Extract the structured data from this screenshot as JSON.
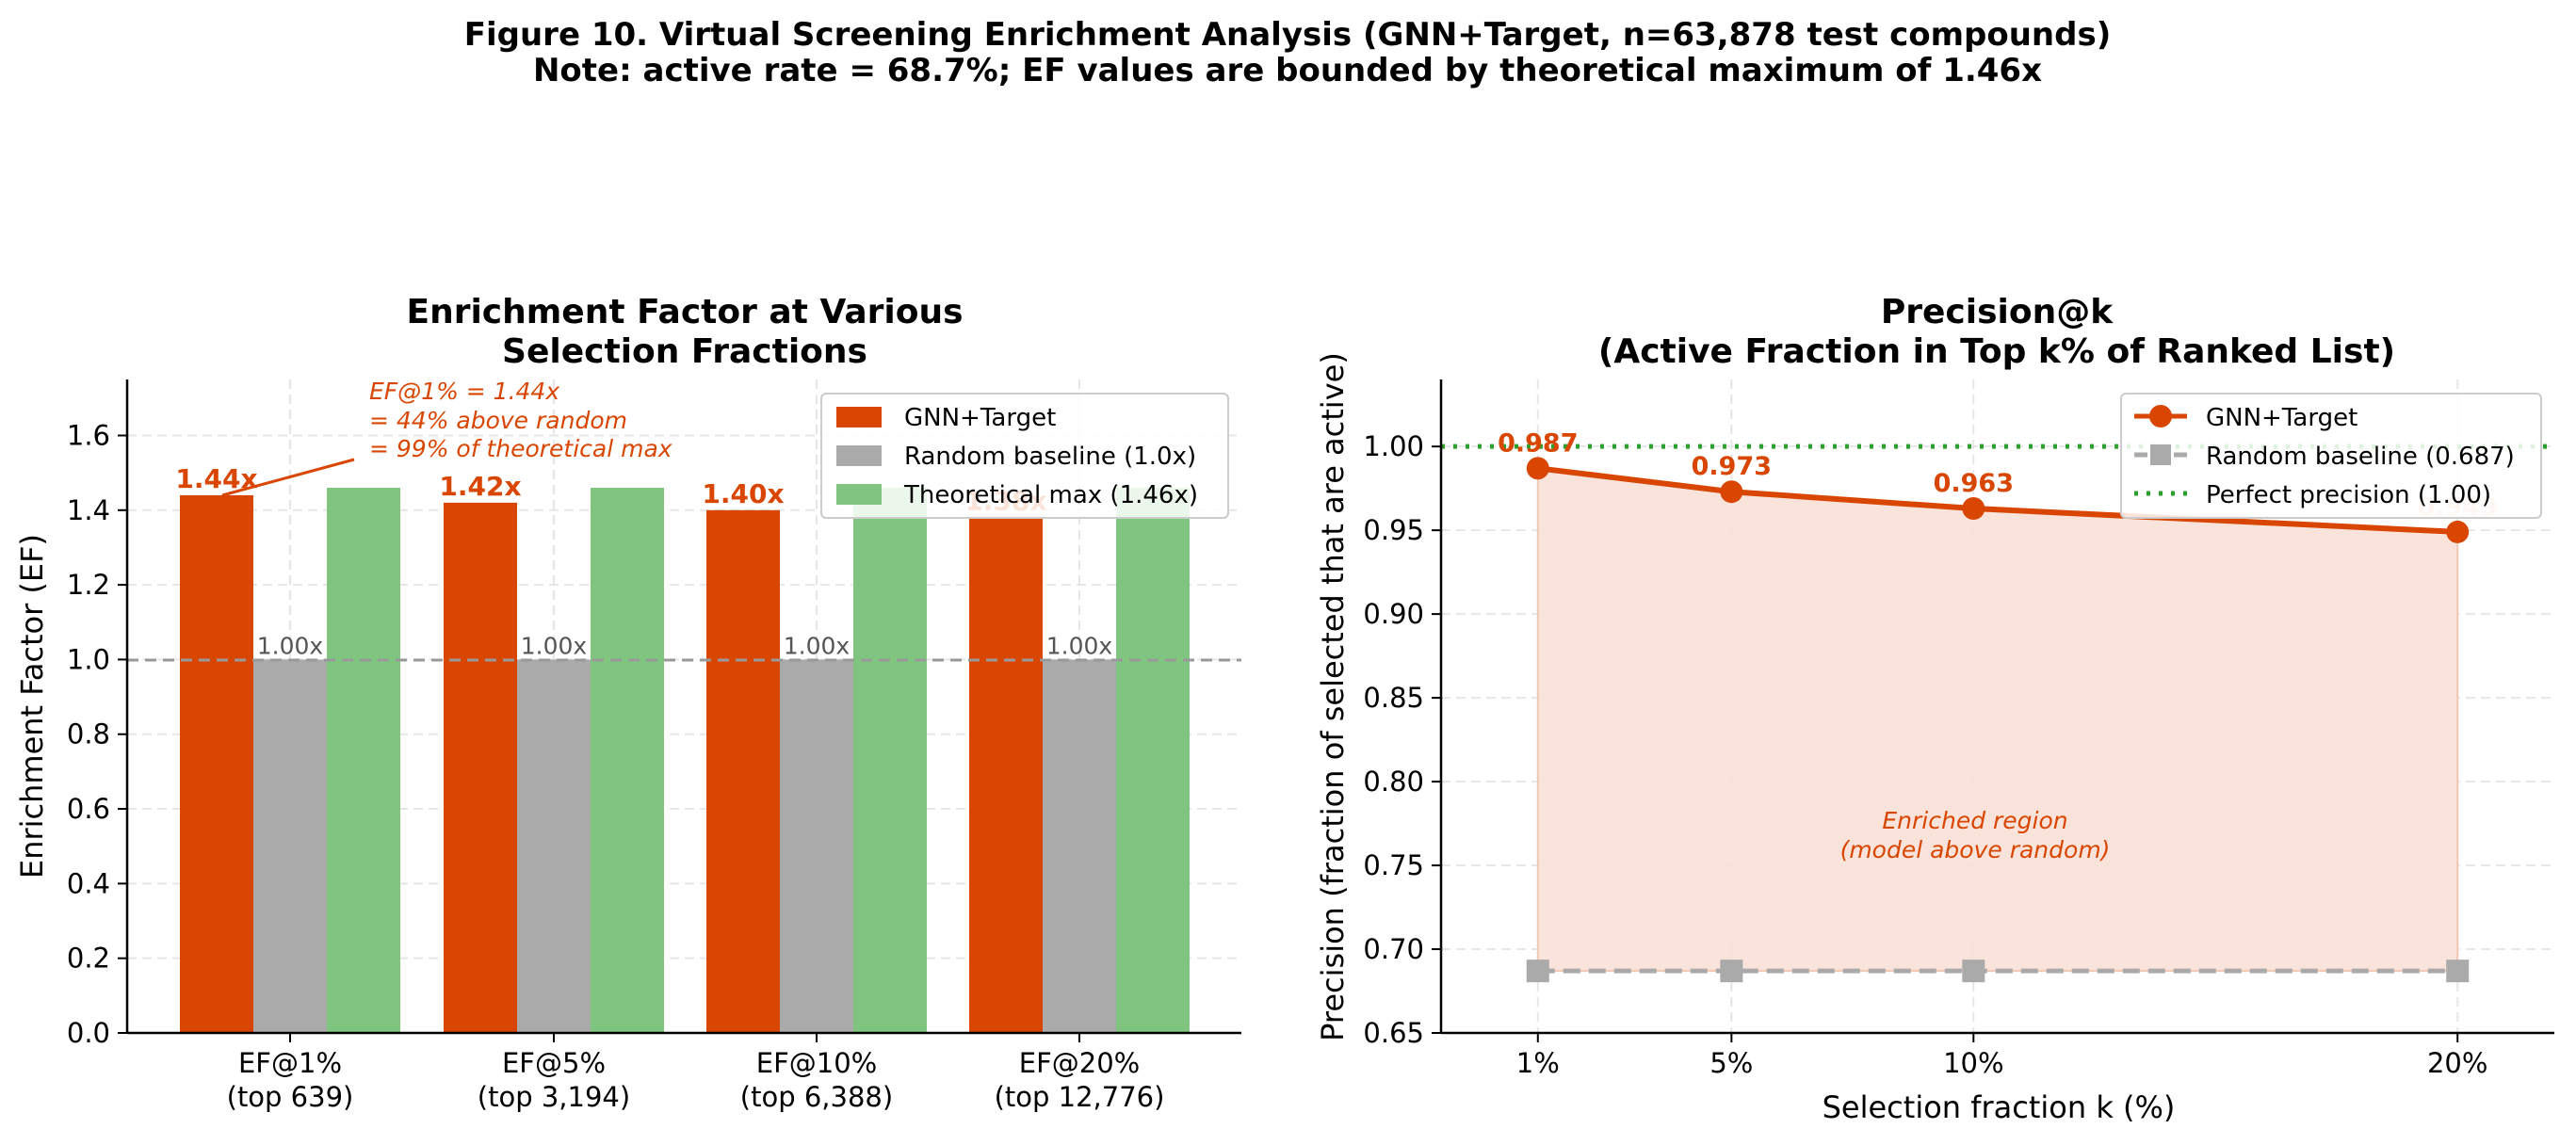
{
  "figure": {
    "title_line1": "Figure 10.  Virtual Screening Enrichment Analysis (GNN+Target, n=63,878 test compounds)",
    "title_line2": "Note: active rate = 68.7%; EF values are bounded by theoretical maximum of 1.46x"
  },
  "colors": {
    "model": "#d94602",
    "random": "#aaaaaa",
    "theoretical": "#7fc57f",
    "perfect": "#2ca02c",
    "fill": "#f8e0d6",
    "grid": "#e6e6e6"
  },
  "chart_data": [
    {
      "type": "bar",
      "title_line1": "Enrichment Factor at Various",
      "title_line2": "Selection Fractions",
      "xlabel": "",
      "ylabel": "Enrichment Factor (EF)",
      "ylim": [
        0,
        1.75
      ],
      "yticks": [
        "0.0",
        "0.2",
        "0.4",
        "0.6",
        "0.8",
        "1.0",
        "1.2",
        "1.4",
        "1.6"
      ],
      "categories_line1": [
        "EF@1%",
        "EF@5%",
        "EF@10%",
        "EF@20%"
      ],
      "categories_line2": [
        "(top 639)",
        "(top 3,194)",
        "(top 6,388)",
        "(top 12,776)"
      ],
      "series": [
        {
          "name": "GNN+Target",
          "values": [
            1.44,
            1.42,
            1.4,
            1.38
          ],
          "labels": [
            "1.44x",
            "1.42x",
            "1.40x",
            "1.38x"
          ]
        },
        {
          "name": "Random baseline (1.0x)",
          "values": [
            1.0,
            1.0,
            1.0,
            1.0
          ],
          "labels": [
            "1.00x",
            "1.00x",
            "1.00x",
            "1.00x"
          ]
        },
        {
          "name": "Theoretical max (1.46x)",
          "values": [
            1.46,
            1.46,
            1.46,
            1.46
          ]
        }
      ],
      "reference_line": 1.0,
      "annotation": [
        "EF@1% = 1.44x",
        "= 44% above random",
        "= 99% of theoretical max"
      ],
      "legend_position": "top-right",
      "grid": true
    },
    {
      "type": "line",
      "title_line1": "Precision@k",
      "title_line2": "(Active Fraction in Top k% of Ranked List)",
      "xlabel": "Selection fraction k (%)",
      "ylabel": "Precision (fraction of selected that are active)",
      "ylim": [
        0.65,
        1.04
      ],
      "xlim": [
        -1,
        22
      ],
      "x": [
        1,
        5,
        10,
        20
      ],
      "xticks": [
        "1%",
        "5%",
        "10%",
        "20%"
      ],
      "yticks": [
        "0.65",
        "0.70",
        "0.75",
        "0.80",
        "0.85",
        "0.90",
        "0.95",
        "1.00"
      ],
      "series": [
        {
          "name": "GNN+Target",
          "values": [
            0.987,
            0.973,
            0.963,
            0.949
          ],
          "labels": [
            "0.987",
            "0.973",
            "0.963",
            "0.949"
          ]
        },
        {
          "name": "Random baseline (0.687)",
          "values": [
            0.687,
            0.687,
            0.687,
            0.687
          ]
        },
        {
          "name": "Perfect precision (1.00)",
          "values": [
            1.0,
            1.0,
            1.0,
            1.0
          ]
        }
      ],
      "region_label": [
        "Enriched region",
        "(model above random)"
      ],
      "legend_position": "top-right",
      "grid": true
    }
  ]
}
